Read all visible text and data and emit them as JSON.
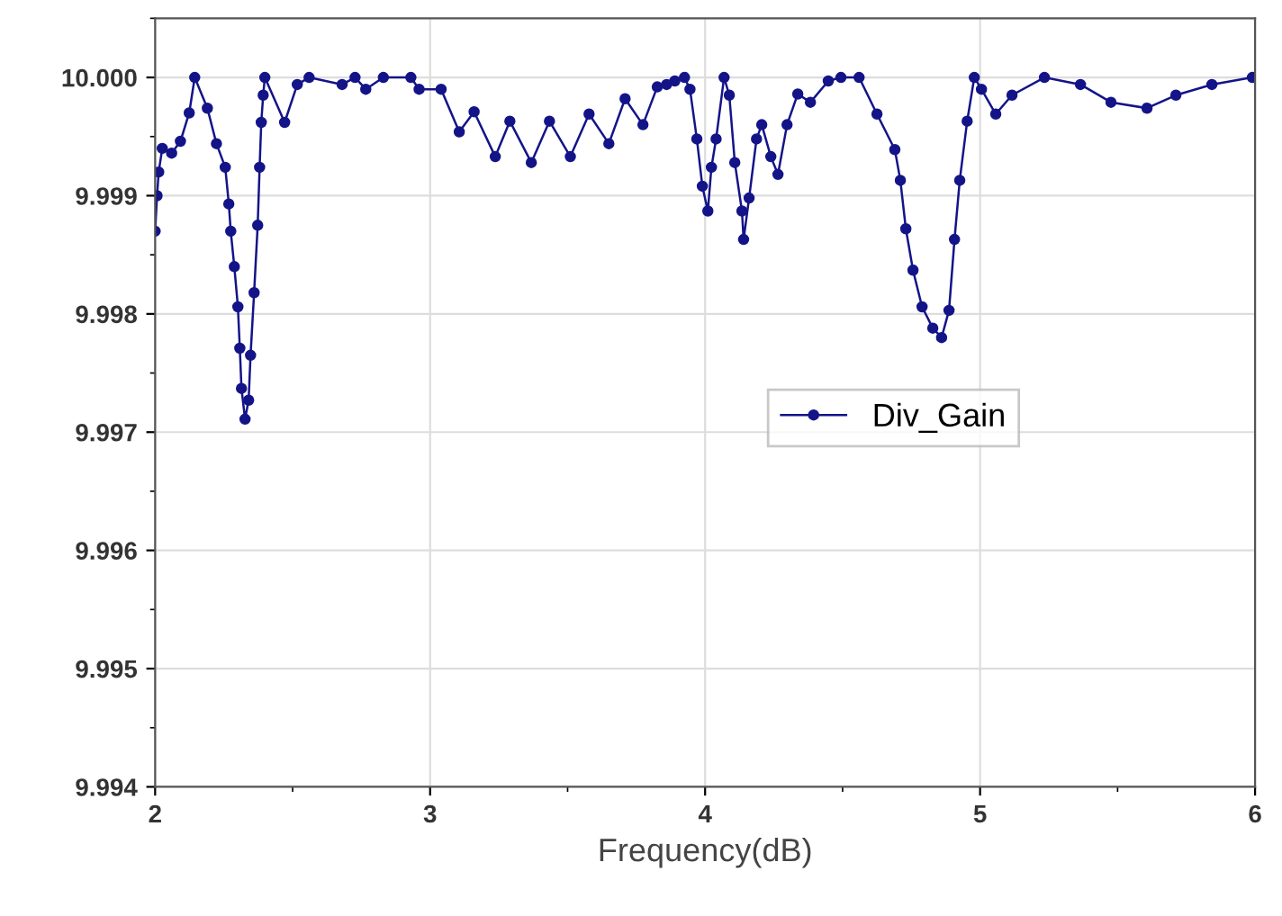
{
  "chart_data": {
    "type": "line",
    "xlabel": "Frequency(dB)",
    "xlim": [
      2,
      6
    ],
    "xticks": [
      2,
      3,
      4,
      5,
      6
    ],
    "ylim": [
      9.994,
      10.0005
    ],
    "yticks": [
      {
        "value": 9.994,
        "label": "9.994"
      },
      {
        "value": 9.995,
        "label": "9.995"
      },
      {
        "value": 9.996,
        "label": "9.996"
      },
      {
        "value": 9.997,
        "label": "9.997"
      },
      {
        "value": 9.998,
        "label": "9.998"
      },
      {
        "value": 9.999,
        "label": "9.999"
      },
      {
        "value": 10.0,
        "label": "10.000"
      }
    ],
    "grid": true,
    "legend": "right",
    "marker": "circle",
    "line_style": "solid",
    "series": [
      {
        "name": "Div_Gain",
        "color": "#141489",
        "x": [
          2.0,
          2.007,
          2.013,
          2.026,
          2.06,
          2.092,
          2.124,
          2.144,
          2.19,
          2.223,
          2.255,
          2.268,
          2.275,
          2.288,
          2.301,
          2.308,
          2.314,
          2.327,
          2.34,
          2.347,
          2.36,
          2.373,
          2.38,
          2.386,
          2.393,
          2.399,
          2.471,
          2.517,
          2.56,
          2.68,
          2.727,
          2.766,
          2.83,
          2.93,
          2.96,
          3.04,
          3.106,
          3.16,
          3.237,
          3.29,
          3.368,
          3.434,
          3.51,
          3.578,
          3.65,
          3.709,
          3.774,
          3.826,
          3.86,
          3.89,
          3.925,
          3.945,
          3.97,
          3.99,
          4.01,
          4.023,
          4.04,
          4.069,
          4.088,
          4.108,
          4.134,
          4.14,
          4.16,
          4.187,
          4.206,
          4.239,
          4.265,
          4.298,
          4.337,
          4.383,
          4.448,
          4.494,
          4.56,
          4.625,
          4.69,
          4.71,
          4.73,
          4.756,
          4.789,
          4.828,
          4.86,
          4.887,
          4.907,
          4.926,
          4.953,
          4.979,
          5.005,
          5.057,
          5.116,
          5.234,
          5.365,
          5.476,
          5.607,
          5.712,
          5.843,
          5.99
        ],
        "values": [
          9.9987,
          9.999,
          9.9992,
          9.9994,
          9.99936,
          9.99946,
          9.9997,
          10.0,
          9.99974,
          9.99944,
          9.99924,
          9.99893,
          9.9987,
          9.9984,
          9.99806,
          9.99771,
          9.99737,
          9.99711,
          9.99727,
          9.99765,
          9.99818,
          9.99875,
          9.99924,
          9.99962,
          9.99985,
          10.0,
          9.99962,
          9.99994,
          10.0,
          9.99994,
          10.0,
          9.9999,
          10.0,
          10.0,
          9.9999,
          9.9999,
          9.99954,
          9.99971,
          9.99933,
          9.99963,
          9.99928,
          9.99963,
          9.99933,
          9.99969,
          9.99944,
          9.99982,
          9.9996,
          9.99992,
          9.99994,
          9.99997,
          10.0,
          9.9999,
          9.99948,
          9.99908,
          9.99887,
          9.99924,
          9.99948,
          10.0,
          9.99985,
          9.99928,
          9.99887,
          9.99863,
          9.99898,
          9.99948,
          9.9996,
          9.99933,
          9.99918,
          9.9996,
          9.99986,
          9.99979,
          9.99997,
          10.0,
          10.0,
          9.99969,
          9.99939,
          9.99913,
          9.99872,
          9.99837,
          9.99806,
          9.99788,
          9.9978,
          9.99803,
          9.99863,
          9.99913,
          9.99963,
          10.0,
          9.9999,
          9.99969,
          9.99985,
          10.0,
          9.99994,
          9.99979,
          9.99974,
          9.99985,
          9.99994,
          10.0
        ]
      }
    ]
  }
}
